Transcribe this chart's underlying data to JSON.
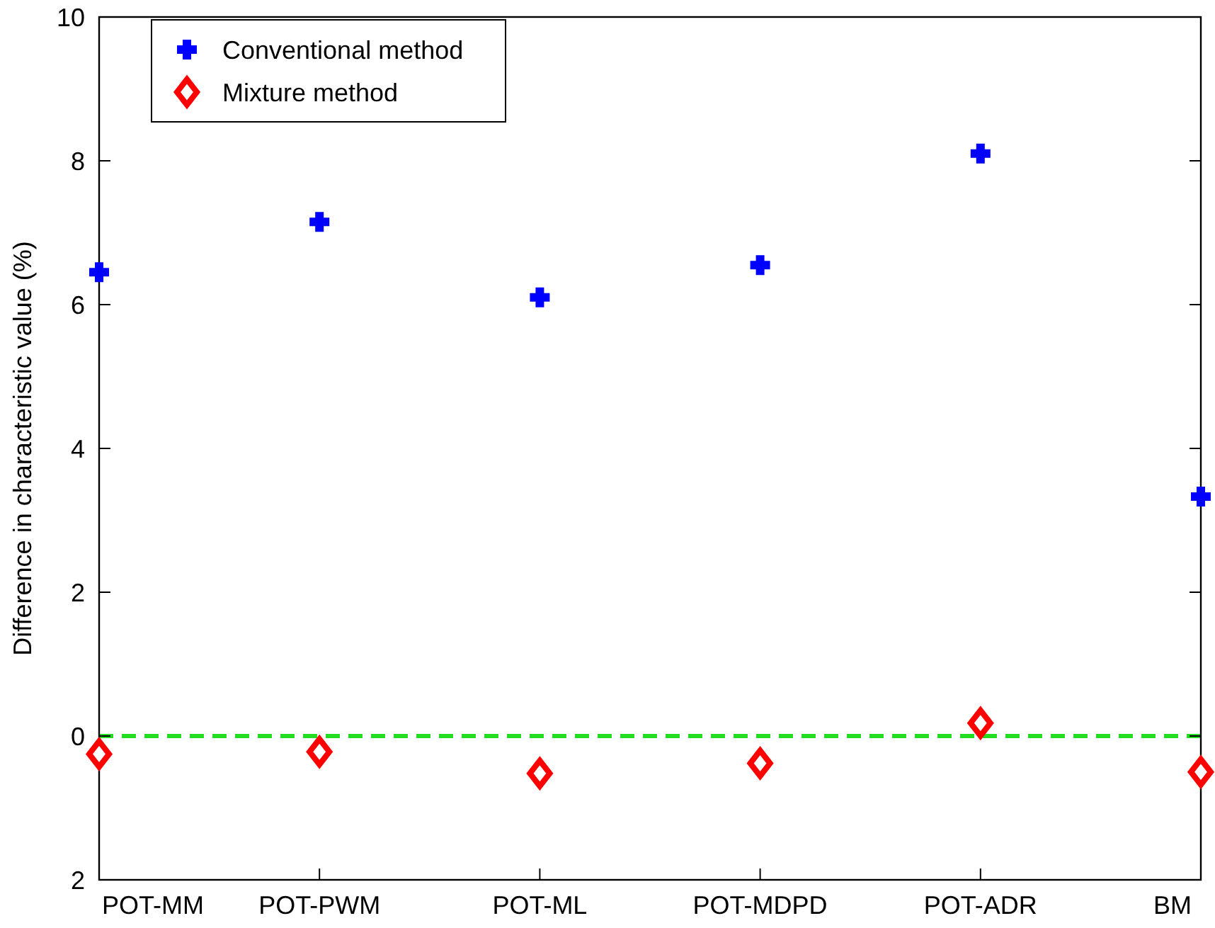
{
  "chart_data": {
    "type": "scatter",
    "ylabel": "Difference in characteristic value (%)",
    "categories": [
      "POT-MM",
      "POT-PWM",
      "POT-ML",
      "POT-MDPD",
      "POT-ADR",
      "BM"
    ],
    "series": [
      {
        "name": "Conventional method",
        "color": "#0000ff",
        "marker": "cross",
        "values": [
          6.45,
          7.15,
          6.1,
          6.55,
          8.1,
          3.33
        ]
      },
      {
        "name": "Mixture method",
        "color": "#ff0000",
        "marker": "diamond",
        "values": [
          -0.25,
          -0.22,
          -0.52,
          -0.38,
          0.18,
          -0.5
        ]
      }
    ],
    "ylim": [
      -2,
      10
    ],
    "yticks": [
      {
        "value": -2,
        "label": "2"
      },
      0,
      2,
      4,
      6,
      8,
      10
    ],
    "ref_lines": [
      {
        "axis": "y",
        "value": 0,
        "color": "#22dd22",
        "line_style": "dashed"
      }
    ],
    "legend": "top left",
    "grid": false
  }
}
